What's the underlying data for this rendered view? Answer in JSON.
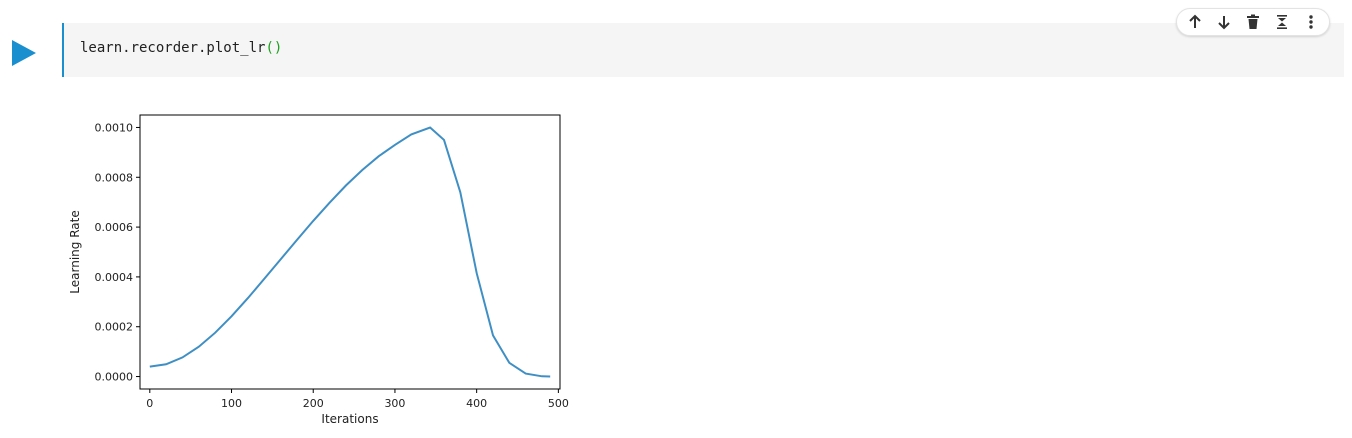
{
  "cell": {
    "code_text": "learn.recorder.plot_lr",
    "code_parens": "()"
  },
  "toolbar": {
    "buttons": [
      {
        "icon": "arrow-up-icon"
      },
      {
        "icon": "arrow-down-icon"
      },
      {
        "icon": "trash-icon"
      },
      {
        "icon": "collapse-icon"
      },
      {
        "icon": "more-vertical-icon"
      }
    ]
  },
  "colors": {
    "accent": "#1a8fd0",
    "line": "#3f8fc4",
    "code_paren": "#1ea11e"
  },
  "chart_data": {
    "type": "line",
    "title": "",
    "xlabel": "Iterations",
    "ylabel": "Learning Rate",
    "xlim": [
      -12,
      502
    ],
    "ylim": [
      -5e-05,
      0.00105
    ],
    "xticks": [
      0,
      100,
      200,
      300,
      400,
      500
    ],
    "xtick_labels": [
      "0",
      "100",
      "200",
      "300",
      "400",
      "500"
    ],
    "yticks": [
      0.0,
      0.0002,
      0.0004,
      0.0006,
      0.0008,
      0.001
    ],
    "ytick_labels": [
      "0.0000",
      "0.0002",
      "0.0004",
      "0.0006",
      "0.0008",
      "0.0010"
    ],
    "grid": false,
    "series": [
      {
        "x": [
          0,
          20,
          40,
          60,
          80,
          100,
          120,
          140,
          160,
          180,
          200,
          220,
          240,
          260,
          280,
          300,
          320,
          343,
          360,
          380,
          400,
          420,
          440,
          460,
          480,
          490
        ],
        "y": [
          4e-05,
          4.9e-05,
          7.7e-05,
          0.00012,
          0.000176,
          0.000242,
          0.000315,
          0.000392,
          0.00047,
          0.000548,
          0.000625,
          0.000698,
          0.000767,
          0.000829,
          0.000884,
          0.00093,
          0.000972,
          0.001,
          0.00095,
          0.00074,
          0.000415,
          0.000165,
          5.5e-05,
          1.2e-05,
          1e-06,
          0.0
        ]
      }
    ]
  }
}
